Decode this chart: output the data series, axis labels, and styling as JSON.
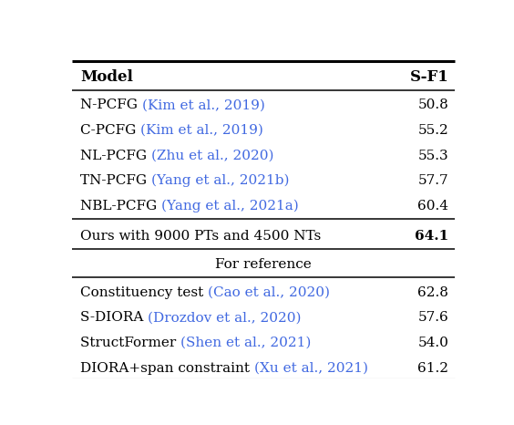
{
  "title_row": [
    "Model",
    "S-F1"
  ],
  "main_rows": [
    {
      "model_plain": "N-PCFG ",
      "model_cite": "(Kim et al., 2019)",
      "value": "50.8",
      "bold_value": false
    },
    {
      "model_plain": "C-PCFG ",
      "model_cite": "(Kim et al., 2019)",
      "value": "55.2",
      "bold_value": false
    },
    {
      "model_plain": "NL-PCFG ",
      "model_cite": "(Zhu et al., 2020)",
      "value": "55.3",
      "bold_value": false
    },
    {
      "model_plain": "TN-PCFG ",
      "model_cite": "(Yang et al., 2021b)",
      "value": "57.7",
      "bold_value": false
    },
    {
      "model_plain": "NBL-PCFG ",
      "model_cite": "(Yang et al., 2021a)",
      "value": "60.4",
      "bold_value": false
    }
  ],
  "ours_row": {
    "model_plain": "Ours with 9000 PTs and 4500 NTs",
    "model_cite": "",
    "value": "64.1",
    "bold_value": true
  },
  "reference_label": "For reference",
  "reference_rows": [
    {
      "model_plain": "Constituency test ",
      "model_cite": "(Cao et al., 2020)",
      "value": "62.8",
      "bold_value": false
    },
    {
      "model_plain": "S-DIORA ",
      "model_cite": "(Drozdov et al., 2020)",
      "value": "57.6",
      "bold_value": false
    },
    {
      "model_plain": "StructFormer ",
      "model_cite": "(Shen et al., 2021)",
      "value": "54.0",
      "bold_value": false
    },
    {
      "model_plain": "DIORA+span constraint ",
      "model_cite": "(Xu et al., 2021)",
      "value": "61.2",
      "bold_value": false
    }
  ],
  "cite_color": "#4169E1",
  "bg_color": "#ffffff",
  "text_color": "#000000",
  "font_size": 11.0,
  "header_font_size": 12.0
}
